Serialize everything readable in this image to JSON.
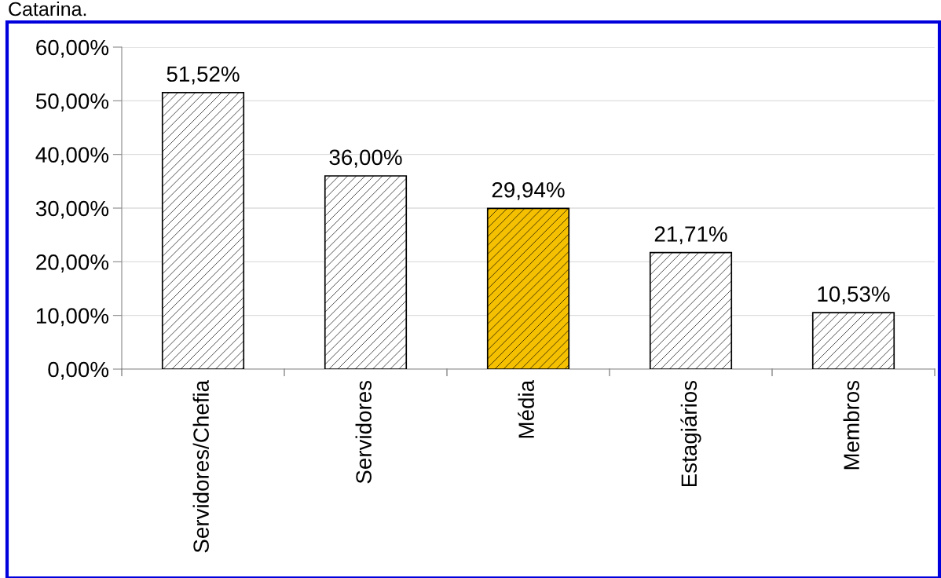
{
  "chart_data": {
    "type": "bar",
    "annotations": [
      "Catarina."
    ],
    "categories": [
      "Servidores/Chefia",
      "Servidores",
      "Média",
      "Estagiários",
      "Membros"
    ],
    "values": [
      51.52,
      36.0,
      29.94,
      21.71,
      10.53
    ],
    "colors": [
      "#ffffff",
      "#ffffff",
      "#f5c000",
      "#ffffff",
      "#ffffff"
    ],
    "value_labels": [
      "51,52%",
      "36,00%",
      "29,94%",
      "21,71%",
      "10,53%"
    ],
    "ylim": [
      0,
      60
    ],
    "yticks": [
      {
        "value": 0,
        "label": "0,00%"
      },
      {
        "value": 10,
        "label": "10,00%"
      },
      {
        "value": 20,
        "label": "20,00%"
      },
      {
        "value": 30,
        "label": "30,00%"
      },
      {
        "value": 40,
        "label": "40,00%"
      },
      {
        "value": 50,
        "label": "50,00%"
      },
      {
        "value": 60,
        "label": "60,00%"
      }
    ],
    "grid": "y",
    "legend": false
  }
}
